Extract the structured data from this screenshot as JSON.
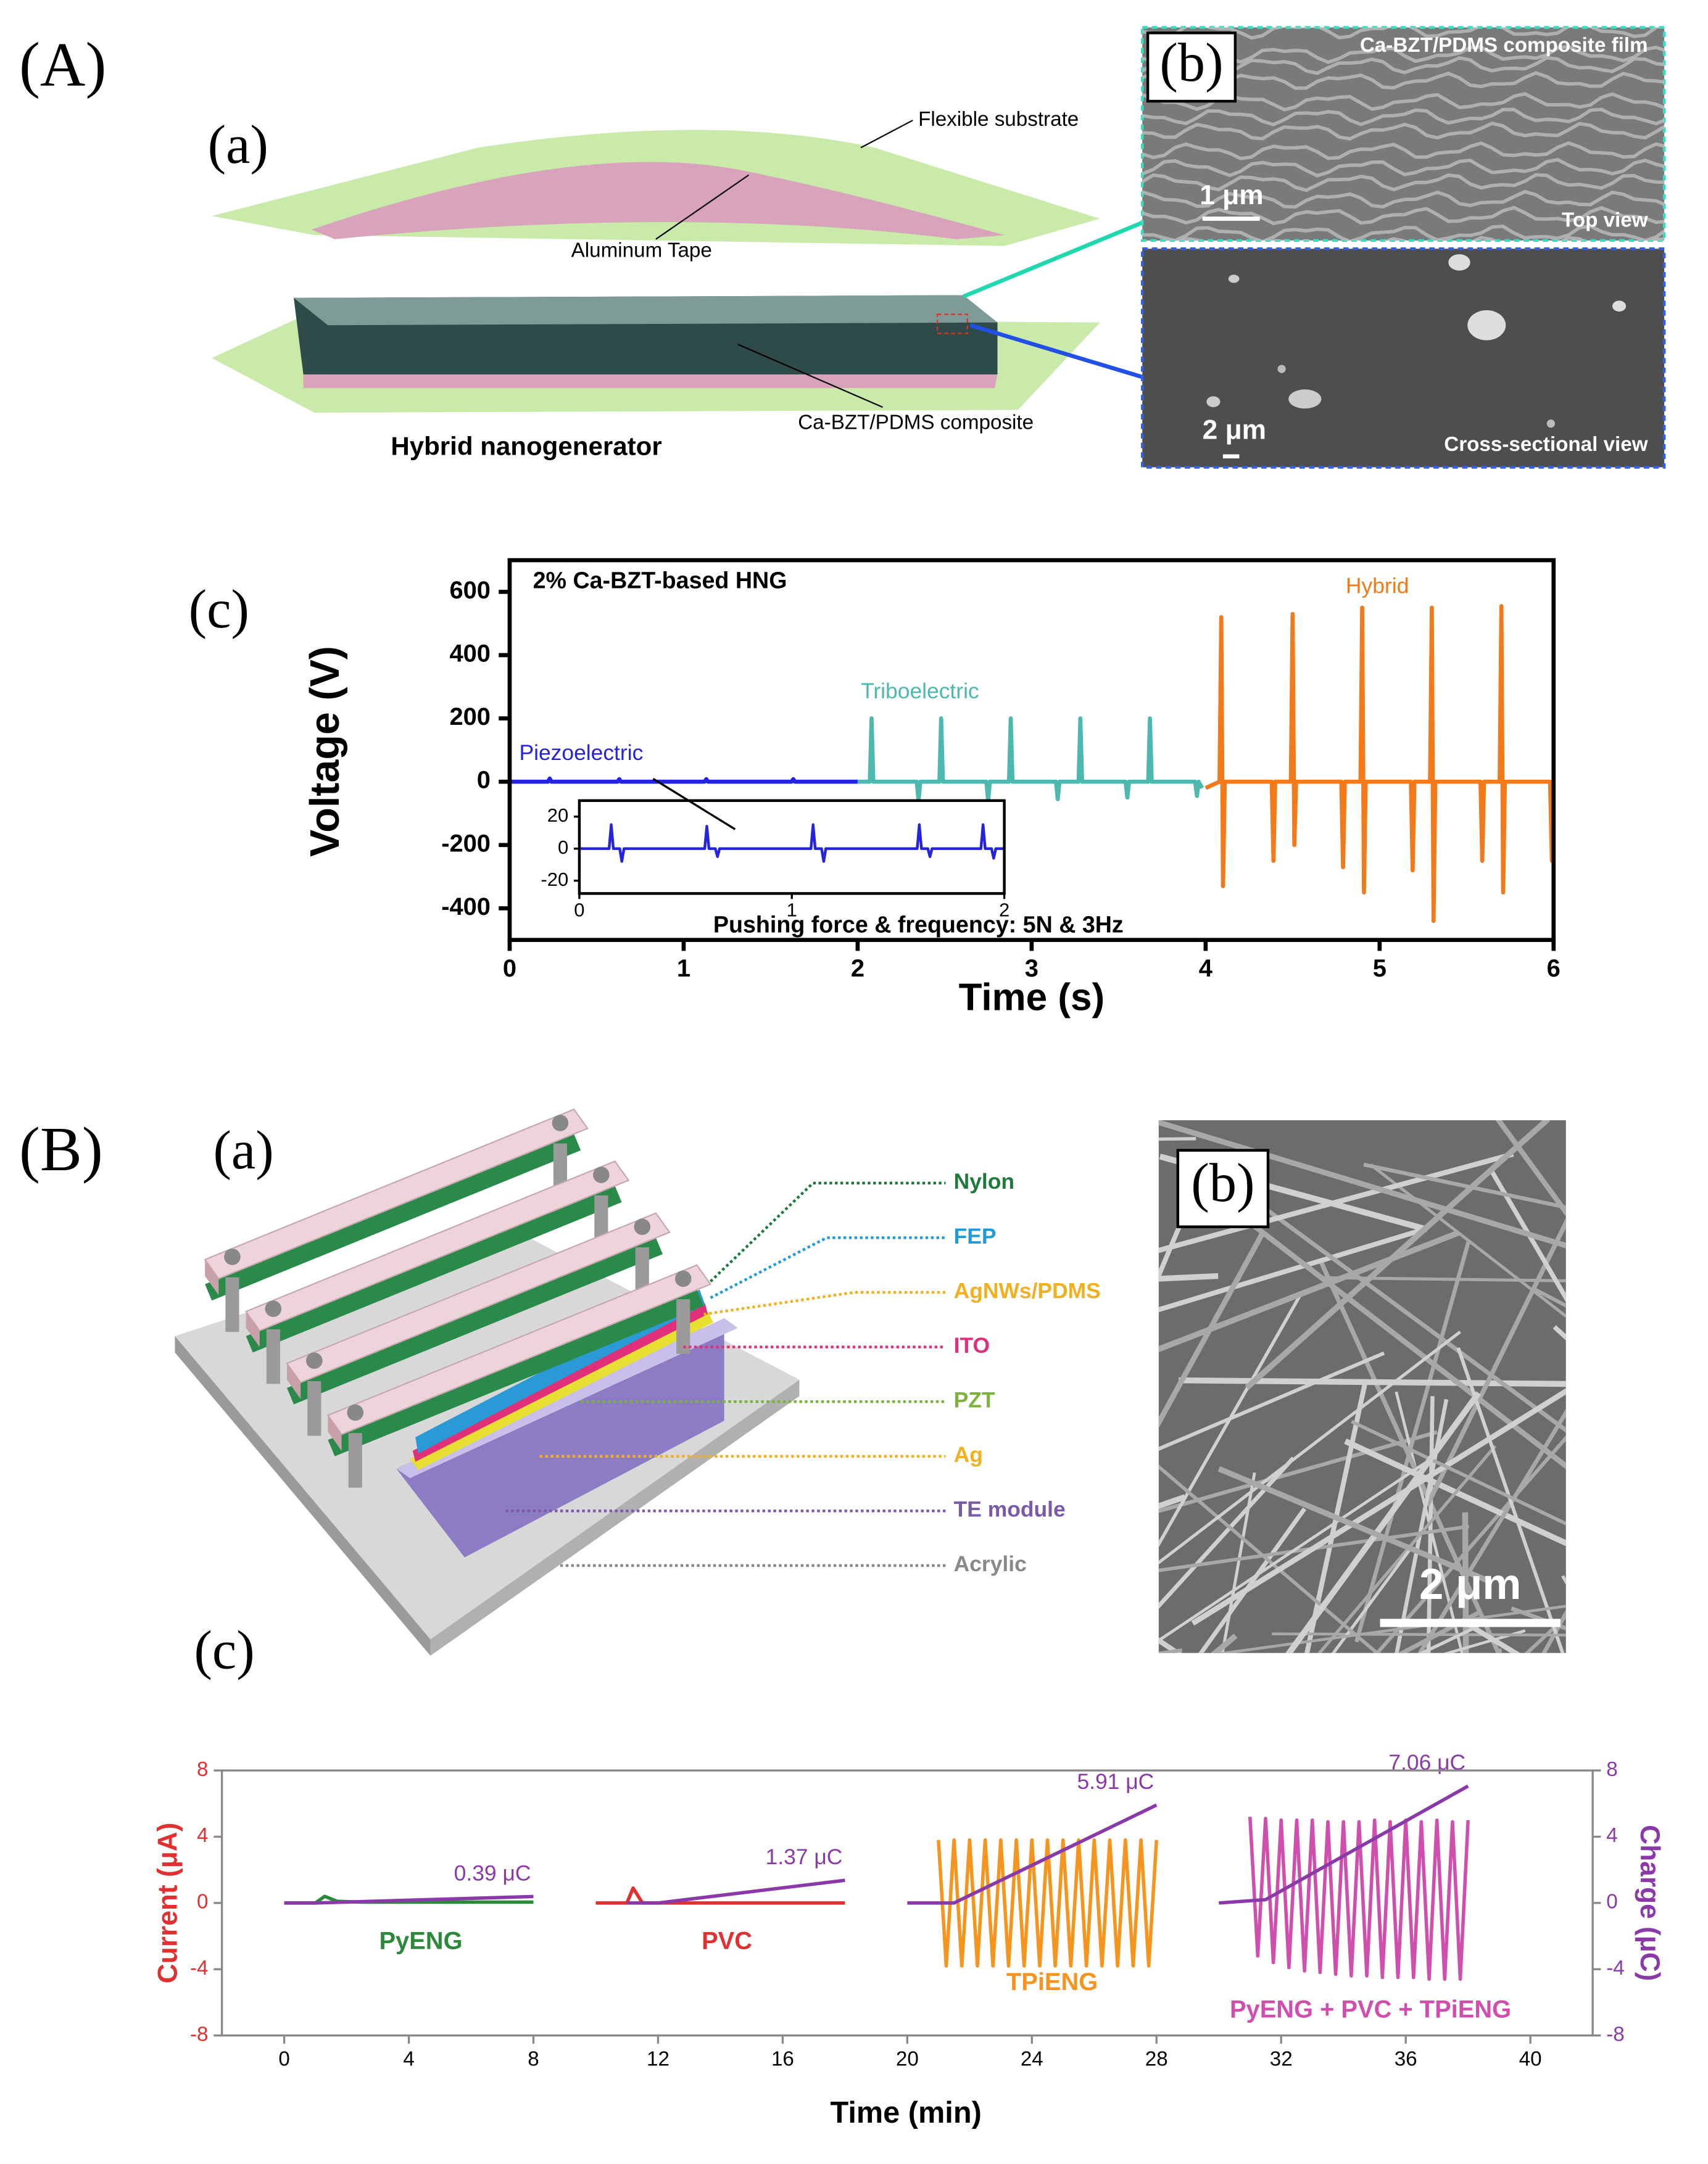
{
  "panel_A": {
    "label": "(A)",
    "a": {
      "label": "(a)",
      "substrate": "Flexible substrate",
      "tape": "Aluminum Tape",
      "composite": "Ca-BZT/PDMS composite",
      "title": "Hybrid nanogenerator"
    },
    "b": {
      "label": "(b)",
      "title": "Ca-BZT/PDMS composite film",
      "top_scale": "1 μm",
      "top_view": "Top view",
      "cross_scale": "2 μm",
      "cross_view": "Cross-sectional view"
    },
    "c": {
      "label": "(c)"
    }
  },
  "panel_B": {
    "label": "(B)",
    "a": {
      "label": "(a)",
      "layers": [
        {
          "label": "Nylon",
          "color": "#1d7a3c"
        },
        {
          "label": "FEP",
          "color": "#1f9bd8"
        },
        {
          "label": "AgNWs/PDMS",
          "color": "#f0b020"
        },
        {
          "label": "ITO",
          "color": "#e0307a"
        },
        {
          "label": "PZT",
          "color": "#7ab33a"
        },
        {
          "label": "Ag",
          "color": "#f0b020"
        },
        {
          "label": "TE module",
          "color": "#7a5aa8"
        },
        {
          "label": "Acrylic",
          "color": "#888888"
        }
      ]
    },
    "b": {
      "label": "(b)",
      "scale": "2 μm"
    },
    "c": {
      "label": "(c)"
    }
  },
  "chart_data": [
    {
      "type": "line",
      "title": "2% Ca-BZT-based HNG",
      "annotation": "Pushing force & frequency: 5N & 3Hz",
      "xlabel": "Time (s)",
      "ylabel": "Voltage (V)",
      "xlim": [
        0,
        6
      ],
      "xticks": [
        0,
        1,
        2,
        3,
        4,
        5,
        6
      ],
      "ylim": [
        -500,
        700
      ],
      "yticks": [
        -400,
        -200,
        0,
        200,
        400,
        600
      ],
      "series": [
        {
          "name": "Piezoelectric",
          "color": "#2424e0",
          "x": [
            0,
            0.22,
            0.23,
            0.24,
            0.62,
            0.63,
            0.64,
            1.12,
            1.13,
            1.14,
            1.62,
            1.63,
            1.64,
            2
          ],
          "values": [
            0,
            0,
            10,
            0,
            0,
            8,
            0,
            0,
            8,
            0,
            0,
            8,
            0,
            0
          ]
        },
        {
          "name": "Triboelectric",
          "color": "#4cb8b0",
          "x": [
            2,
            2.07,
            2.08,
            2.09,
            2.34,
            2.35,
            2.36,
            2.47,
            2.48,
            2.49,
            2.74,
            2.75,
            2.76,
            2.87,
            2.88,
            2.89,
            3.14,
            3.15,
            3.16,
            3.27,
            3.28,
            3.29,
            3.54,
            3.55,
            3.56,
            3.67,
            3.68,
            3.69,
            3.94,
            3.95,
            3.96,
            3.98
          ],
          "values": [
            0,
            0,
            200,
            0,
            0,
            -60,
            0,
            0,
            200,
            0,
            0,
            -60,
            0,
            0,
            200,
            0,
            0,
            -55,
            0,
            0,
            200,
            0,
            0,
            -50,
            0,
            0,
            200,
            0,
            0,
            -45,
            0,
            -20
          ]
        },
        {
          "name": "Hybrid",
          "color": "#f27a1a",
          "x": [
            4,
            4.08,
            4.09,
            4.1,
            4.11,
            4.38,
            4.39,
            4.4,
            4.49,
            4.5,
            4.51,
            4.52,
            4.78,
            4.79,
            4.8,
            4.89,
            4.9,
            4.91,
            4.92,
            5.18,
            5.19,
            5.2,
            5.29,
            5.3,
            5.31,
            5.32,
            5.58,
            5.59,
            5.6,
            5.69,
            5.7,
            5.71,
            5.72,
            5.98,
            5.99,
            6
          ],
          "values": [
            -20,
            0,
            520,
            -330,
            0,
            0,
            -250,
            0,
            0,
            530,
            -200,
            0,
            0,
            -270,
            0,
            0,
            550,
            -350,
            0,
            0,
            -280,
            0,
            0,
            550,
            -440,
            0,
            0,
            -250,
            0,
            0,
            555,
            -350,
            0,
            0,
            -250,
            0
          ]
        }
      ]
    },
    {
      "type": "line",
      "xlim": [
        0,
        2
      ],
      "xticks": [
        0,
        1,
        2
      ],
      "ylim": [
        -28,
        30
      ],
      "yticks": [
        -20,
        0,
        20
      ],
      "series": [
        {
          "color": "#2424e0",
          "x": [
            0,
            0.14,
            0.15,
            0.16,
            0.19,
            0.2,
            0.21,
            0.59,
            0.6,
            0.61,
            0.64,
            0.65,
            0.66,
            1.09,
            1.1,
            1.11,
            1.14,
            1.15,
            1.16,
            1.59,
            1.6,
            1.61,
            1.64,
            1.65,
            1.66,
            1.89,
            1.9,
            1.91,
            1.94,
            1.95,
            1.96,
            2
          ],
          "values": [
            0,
            0,
            15,
            0,
            0,
            -8,
            0,
            0,
            14,
            0,
            0,
            -5,
            0,
            0,
            15,
            0,
            0,
            -8,
            0,
            0,
            15,
            0,
            0,
            -5,
            0,
            0,
            15,
            0,
            0,
            -6,
            0,
            0
          ]
        }
      ]
    },
    {
      "type": "line",
      "xlabel": "Time (min)",
      "ylabel": "Current (μA)",
      "y2label": "Charge (μC)",
      "ycolor": "#e03030",
      "y2color": "#8a3aa8",
      "xlim": [
        -2,
        42
      ],
      "xticks": [
        0,
        4,
        8,
        12,
        16,
        20,
        24,
        28,
        32,
        36,
        40
      ],
      "ylim": [
        -8,
        8
      ],
      "yticks": [
        -8,
        -4,
        0,
        4,
        8
      ],
      "y2lim": [
        -8,
        8
      ],
      "y2ticks": [
        -8,
        -4,
        0,
        4,
        8
      ],
      "series": [
        {
          "name": "PyENG",
          "color": "#2a8a3a",
          "x": [
            0,
            1,
            1.3,
            1.7,
            2.5,
            8
          ],
          "values": [
            0,
            0,
            0.4,
            0.1,
            0.05,
            0.05
          ]
        },
        {
          "name": "PVC",
          "color": "#e03030",
          "x": [
            10,
            11,
            11.2,
            11.5,
            18
          ],
          "values": [
            0,
            0,
            0.9,
            0,
            0
          ]
        },
        {
          "name": "TPiENG",
          "color": "#f7941d",
          "x": [
            21,
            21.25,
            21.5,
            21.75,
            22,
            22.25,
            22.5,
            22.75,
            23,
            23.25,
            23.5,
            23.75,
            24,
            24.25,
            24.5,
            24.75,
            25,
            25.25,
            25.5,
            25.75,
            26,
            26.25,
            26.5,
            26.75,
            27,
            27.25,
            27.5,
            27.75,
            28
          ],
          "values": [
            3.8,
            -3.8,
            3.8,
            -3.8,
            3.8,
            -3.8,
            3.8,
            -3.8,
            3.8,
            -3.8,
            3.8,
            -3.8,
            3.8,
            -3.8,
            3.8,
            -3.8,
            3.8,
            -3.8,
            3.8,
            -3.8,
            3.8,
            -3.8,
            3.8,
            -3.8,
            3.8,
            -3.8,
            3.8,
            -3.8,
            3.8
          ]
        },
        {
          "name": "PyENG + PVC + TPiENG",
          "color": "#d04fae",
          "x": [
            31,
            31.25,
            31.5,
            31.75,
            32,
            32.25,
            32.5,
            32.75,
            33,
            33.25,
            33.5,
            33.75,
            34,
            34.25,
            34.5,
            34.75,
            35,
            35.25,
            35.5,
            35.75,
            36,
            36.25,
            36.5,
            36.75,
            37,
            37.25,
            37.5,
            37.75,
            38
          ],
          "values": [
            5.2,
            -3.2,
            5.1,
            -3.6,
            5.0,
            -3.9,
            5.0,
            -4.1,
            5.0,
            -4.2,
            4.9,
            -4.3,
            4.9,
            -4.4,
            4.9,
            -4.4,
            5.0,
            -4.5,
            4.9,
            -4.5,
            5.0,
            -4.5,
            4.9,
            -4.6,
            5.0,
            -4.6,
            4.9,
            -4.6,
            5.0
          ]
        },
        {
          "color": "#8a3aa8",
          "axis": "y2",
          "x": [
            0,
            1,
            8,
            9,
            11,
            12,
            18,
            19,
            20,
            21.5,
            28,
            29,
            30,
            31.5,
            38
          ],
          "values": [
            0,
            0,
            0.39,
            null,
            0,
            0,
            1.37,
            null,
            0,
            0,
            5.91,
            null,
            0,
            0.2,
            7.06
          ],
          "value_labels": [
            null,
            null,
            "0.39 μC",
            null,
            null,
            null,
            "1.37 μC",
            null,
            null,
            null,
            "5.91 μC",
            null,
            null,
            null,
            "7.06 μC"
          ]
        }
      ]
    }
  ]
}
